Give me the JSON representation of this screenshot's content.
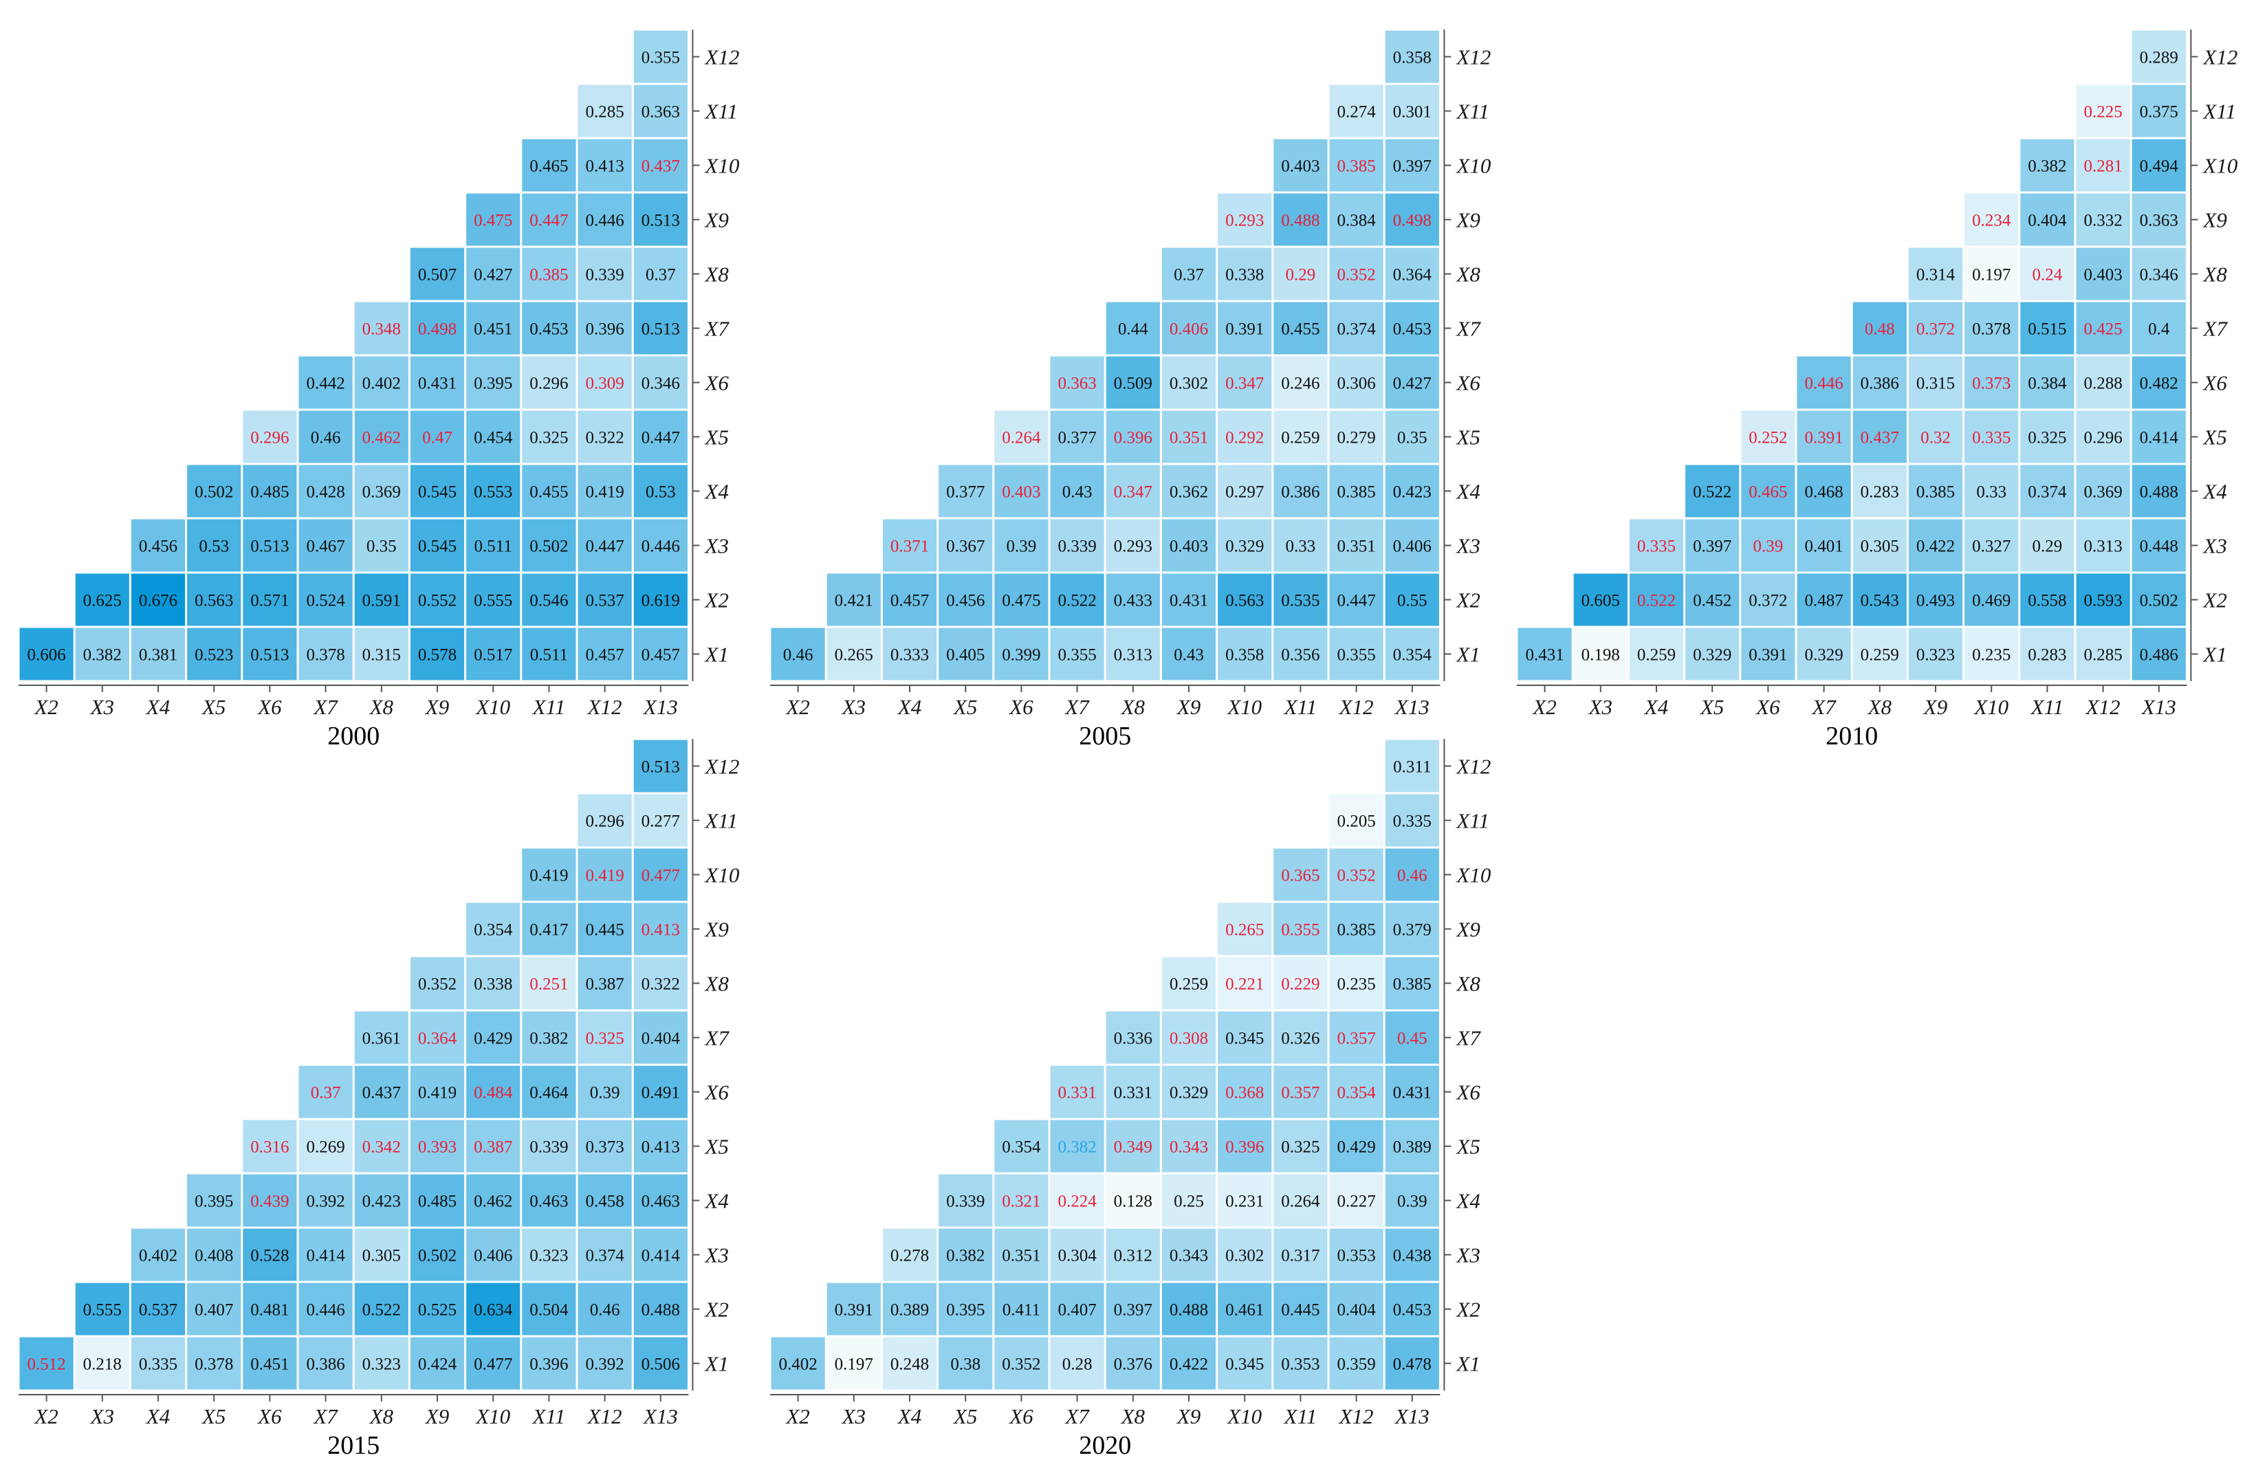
{
  "chart_data": [
    {
      "type": "heatmap",
      "title": "2000",
      "x_labels": [
        "X2",
        "X3",
        "X4",
        "X5",
        "X6",
        "X7",
        "X8",
        "X9",
        "X10",
        "X11",
        "X12",
        "X13"
      ],
      "y_labels": [
        "X1",
        "X2",
        "X3",
        "X4",
        "X5",
        "X6",
        "X7",
        "X8",
        "X9",
        "X10",
        "X11",
        "X12"
      ],
      "rows": [
        {
          "label": "X12",
          "values": [
            0.355
          ]
        },
        {
          "label": "X11",
          "values": [
            0.285,
            0.363
          ]
        },
        {
          "label": "X10",
          "values": [
            0.465,
            0.413,
            0.437
          ]
        },
        {
          "label": "X9",
          "values": [
            0.475,
            0.447,
            0.446,
            0.513
          ]
        },
        {
          "label": "X8",
          "values": [
            0.507,
            0.427,
            0.385,
            0.339,
            0.37
          ]
        },
        {
          "label": "X7",
          "values": [
            0.348,
            0.498,
            0.451,
            0.453,
            0.396,
            0.513
          ]
        },
        {
          "label": "X6",
          "values": [
            0.442,
            0.402,
            0.431,
            0.395,
            0.296,
            0.309,
            0.346
          ]
        },
        {
          "label": "X5",
          "values": [
            0.296,
            0.46,
            0.462,
            0.47,
            0.454,
            0.325,
            0.322,
            0.447
          ]
        },
        {
          "label": "X4",
          "values": [
            0.502,
            0.485,
            0.428,
            0.369,
            0.545,
            0.553,
            0.455,
            0.419,
            0.53
          ]
        },
        {
          "label": "X3",
          "values": [
            0.456,
            0.53,
            0.513,
            0.467,
            0.35,
            0.545,
            0.511,
            0.502,
            0.447,
            0.446
          ]
        },
        {
          "label": "X2",
          "values": [
            0.625,
            0.676,
            0.563,
            0.571,
            0.524,
            0.591,
            0.552,
            0.555,
            0.546,
            0.537,
            0.619
          ]
        },
        {
          "label": "X1",
          "values": [
            0.606,
            0.382,
            0.381,
            0.523,
            0.513,
            0.378,
            0.315,
            0.578,
            0.517,
            0.511,
            0.457,
            0.457
          ]
        }
      ],
      "red_values": [
        [],
        [],
        [],
        [],
        [
          0,
          2,
          3
        ],
        [
          5
        ],
        [
          0,
          1
        ],
        [
          2
        ],
        [
          0,
          1,
          8
        ],
        [
          2
        ],
        [],
        [
          3,
          4,
          9,
          10
        ]
      ],
      "cyan_values": [
        [],
        [],
        [],
        [],
        [],
        [],
        [],
        [],
        [],
        [],
        [],
        []
      ]
    },
    {
      "type": "heatmap",
      "title": "2005",
      "x_labels": [
        "X2",
        "X3",
        "X4",
        "X5",
        "X6",
        "X7",
        "X8",
        "X9",
        "X10",
        "X11",
        "X12",
        "X13"
      ],
      "y_labels": [
        "X1",
        "X2",
        "X3",
        "X4",
        "X5",
        "X6",
        "X7",
        "X8",
        "X9",
        "X10",
        "X11",
        "X12"
      ],
      "rows": [
        {
          "label": "X12",
          "values": [
            0.358
          ]
        },
        {
          "label": "X11",
          "values": [
            0.274,
            0.301
          ]
        },
        {
          "label": "X10",
          "values": [
            0.403,
            0.385,
            0.397
          ]
        },
        {
          "label": "X9",
          "values": [
            0.293,
            0.488,
            0.384,
            0.498
          ]
        },
        {
          "label": "X8",
          "values": [
            0.37,
            0.338,
            0.29,
            0.352,
            0.364
          ]
        },
        {
          "label": "X7",
          "values": [
            0.44,
            0.406,
            0.391,
            0.455,
            0.374,
            0.453
          ]
        },
        {
          "label": "X6",
          "values": [
            0.363,
            0.509,
            0.302,
            0.347,
            0.246,
            0.306,
            0.427
          ]
        },
        {
          "label": "X5",
          "values": [
            0.264,
            0.377,
            0.396,
            0.351,
            0.292,
            0.259,
            0.279,
            0.35
          ]
        },
        {
          "label": "X4",
          "values": [
            0.377,
            0.403,
            0.43,
            0.347,
            0.362,
            0.297,
            0.386,
            0.385,
            0.423
          ]
        },
        {
          "label": "X3",
          "values": [
            0.371,
            0.367,
            0.39,
            0.339,
            0.293,
            0.403,
            0.329,
            0.33,
            0.351,
            0.406
          ]
        },
        {
          "label": "X2",
          "values": [
            0.421,
            0.457,
            0.456,
            0.475,
            0.522,
            0.433,
            0.431,
            0.563,
            0.535,
            0.447,
            0.55
          ]
        },
        {
          "label": "X1",
          "values": [
            0.46,
            0.265,
            0.333,
            0.405,
            0.399,
            0.355,
            0.313,
            0.43,
            0.358,
            0.356,
            0.355,
            0.354
          ]
        }
      ],
      "red_values": [
        [],
        [],
        [
          0
        ],
        [
          1,
          3
        ],
        [
          0,
          2,
          3,
          4
        ],
        [
          0,
          3
        ],
        [
          1,
          6
        ],
        [
          2,
          3,
          5,
          7
        ],
        [
          0,
          1,
          3,
          6,
          8
        ],
        [
          1,
          9
        ],
        [
          9
        ],
        [
          3,
          7,
          9
        ]
      ],
      "cyan_values": [
        [],
        [],
        [],
        [],
        [],
        [],
        [],
        [],
        [],
        [],
        [],
        []
      ]
    },
    {
      "type": "heatmap",
      "title": "2010",
      "x_labels": [
        "X2",
        "X3",
        "X4",
        "X5",
        "X6",
        "X7",
        "X8",
        "X9",
        "X10",
        "X11",
        "X12",
        "X13"
      ],
      "y_labels": [
        "X1",
        "X2",
        "X3",
        "X4",
        "X5",
        "X6",
        "X7",
        "X8",
        "X9",
        "X10",
        "X11",
        "X12"
      ],
      "rows": [
        {
          "label": "X12",
          "values": [
            0.289
          ]
        },
        {
          "label": "X11",
          "values": [
            0.225,
            0.375
          ]
        },
        {
          "label": "X10",
          "values": [
            0.382,
            0.281,
            0.494
          ]
        },
        {
          "label": "X9",
          "values": [
            0.234,
            0.404,
            0.332,
            0.363
          ]
        },
        {
          "label": "X8",
          "values": [
            0.314,
            0.197,
            0.24,
            0.403,
            0.346
          ]
        },
        {
          "label": "X7",
          "values": [
            0.48,
            0.372,
            0.378,
            0.515,
            0.425,
            0.4
          ]
        },
        {
          "label": "X6",
          "values": [
            0.446,
            0.386,
            0.315,
            0.373,
            0.384,
            0.288,
            0.482
          ]
        },
        {
          "label": "X5",
          "values": [
            0.252,
            0.391,
            0.437,
            0.32,
            0.335,
            0.325,
            0.296,
            0.414
          ]
        },
        {
          "label": "X4",
          "values": [
            0.522,
            0.465,
            0.468,
            0.283,
            0.385,
            0.33,
            0.374,
            0.369,
            0.488
          ]
        },
        {
          "label": "X3",
          "values": [
            0.335,
            0.397,
            0.39,
            0.401,
            0.305,
            0.422,
            0.327,
            0.29,
            0.313,
            0.448
          ]
        },
        {
          "label": "X2",
          "values": [
            0.605,
            0.522,
            0.452,
            0.372,
            0.487,
            0.543,
            0.493,
            0.469,
            0.558,
            0.593,
            0.502
          ]
        },
        {
          "label": "X1",
          "values": [
            0.431,
            0.198,
            0.259,
            0.329,
            0.391,
            0.329,
            0.259,
            0.323,
            0.235,
            0.283,
            0.285,
            0.486
          ]
        }
      ],
      "red_values": [
        [],
        [
          1
        ],
        [
          0,
          2
        ],
        [
          1
        ],
        [
          0,
          1,
          2,
          3,
          4
        ],
        [
          0,
          3
        ],
        [
          0,
          1,
          4,
          6
        ],
        [
          2,
          5,
          7
        ],
        [
          0,
          8
        ],
        [
          1,
          4,
          5,
          9
        ],
        [
          0,
          5,
          8,
          9
        ],
        [
          3,
          4,
          6,
          7,
          9,
          11
        ]
      ],
      "cyan_values": [
        [],
        [],
        [],
        [],
        [],
        [],
        [],
        [],
        [],
        [],
        [],
        [
          2
        ]
      ]
    },
    {
      "type": "heatmap",
      "title": "2015",
      "x_labels": [
        "X2",
        "X3",
        "X4",
        "X5",
        "X6",
        "X7",
        "X8",
        "X9",
        "X10",
        "X11",
        "X12",
        "X13"
      ],
      "y_labels": [
        "X1",
        "X2",
        "X3",
        "X4",
        "X5",
        "X6",
        "X7",
        "X8",
        "X9",
        "X10",
        "X11",
        "X12"
      ],
      "rows": [
        {
          "label": "X12",
          "values": [
            0.513
          ]
        },
        {
          "label": "X11",
          "values": [
            0.296,
            0.277
          ]
        },
        {
          "label": "X10",
          "values": [
            0.419,
            0.419,
            0.477
          ]
        },
        {
          "label": "X9",
          "values": [
            0.354,
            0.417,
            0.445,
            0.413
          ]
        },
        {
          "label": "X8",
          "values": [
            0.352,
            0.338,
            0.251,
            0.387,
            0.322
          ]
        },
        {
          "label": "X7",
          "values": [
            0.361,
            0.364,
            0.429,
            0.382,
            0.325,
            0.404
          ]
        },
        {
          "label": "X6",
          "values": [
            0.37,
            0.437,
            0.419,
            0.484,
            0.464,
            0.39,
            0.491
          ]
        },
        {
          "label": "X5",
          "values": [
            0.316,
            0.269,
            0.342,
            0.393,
            0.387,
            0.339,
            0.373,
            0.413
          ]
        },
        {
          "label": "X4",
          "values": [
            0.395,
            0.439,
            0.392,
            0.423,
            0.485,
            0.462,
            0.463,
            0.458,
            0.463
          ]
        },
        {
          "label": "X3",
          "values": [
            0.402,
            0.408,
            0.528,
            0.414,
            0.305,
            0.502,
            0.406,
            0.323,
            0.374,
            0.414
          ]
        },
        {
          "label": "X2",
          "values": [
            0.555,
            0.537,
            0.407,
            0.481,
            0.446,
            0.522,
            0.525,
            0.634,
            0.504,
            0.46,
            0.488
          ]
        },
        {
          "label": "X1",
          "values": [
            0.512,
            0.218,
            0.335,
            0.378,
            0.451,
            0.386,
            0.323,
            0.424,
            0.477,
            0.396,
            0.392,
            0.506
          ]
        }
      ],
      "red_values": [
        [
          0
        ],
        [],
        [],
        [
          1
        ],
        [
          0,
          2,
          3,
          4
        ],
        [
          0,
          3
        ],
        [
          1,
          4
        ],
        [
          2
        ],
        [
          3,
          4,
          6,
          7,
          8
        ],
        [
          1,
          2,
          3,
          4,
          5,
          9
        ],
        [
          5
        ],
        [
          3,
          4,
          5,
          6,
          7,
          8,
          9,
          10,
          11
        ]
      ],
      "cyan_values": [
        [],
        [],
        [],
        [],
        [],
        [],
        [],
        [],
        [],
        [],
        [
          2
        ],
        []
      ]
    },
    {
      "type": "heatmap",
      "title": "2020",
      "x_labels": [
        "X2",
        "X3",
        "X4",
        "X5",
        "X6",
        "X7",
        "X8",
        "X9",
        "X10",
        "X11",
        "X12",
        "X13"
      ],
      "y_labels": [
        "X1",
        "X2",
        "X3",
        "X4",
        "X5",
        "X6",
        "X7",
        "X8",
        "X9",
        "X10",
        "X11",
        "X12"
      ],
      "rows": [
        {
          "label": "X12",
          "values": [
            0.311
          ]
        },
        {
          "label": "X11",
          "values": [
            0.205,
            0.335
          ]
        },
        {
          "label": "X10",
          "values": [
            0.365,
            0.352,
            0.46
          ]
        },
        {
          "label": "X9",
          "values": [
            0.265,
            0.355,
            0.385,
            0.379
          ]
        },
        {
          "label": "X8",
          "values": [
            0.259,
            0.221,
            0.229,
            0.235,
            0.385
          ]
        },
        {
          "label": "X7",
          "values": [
            0.336,
            0.308,
            0.345,
            0.326,
            0.357,
            0.45
          ]
        },
        {
          "label": "X6",
          "values": [
            0.331,
            0.331,
            0.329,
            0.368,
            0.357,
            0.354,
            0.431
          ]
        },
        {
          "label": "X5",
          "values": [
            0.354,
            0.382,
            0.349,
            0.343,
            0.396,
            0.325,
            0.429,
            0.389
          ]
        },
        {
          "label": "X4",
          "values": [
            0.339,
            0.321,
            0.224,
            0.128,
            0.25,
            0.231,
            0.264,
            0.227,
            0.39
          ]
        },
        {
          "label": "X3",
          "values": [
            0.278,
            0.382,
            0.351,
            0.304,
            0.312,
            0.343,
            0.302,
            0.317,
            0.353,
            0.438
          ]
        },
        {
          "label": "X2",
          "values": [
            0.391,
            0.389,
            0.395,
            0.411,
            0.407,
            0.397,
            0.488,
            0.461,
            0.445,
            0.404,
            0.453
          ]
        },
        {
          "label": "X1",
          "values": [
            0.402,
            0.197,
            0.248,
            0.38,
            0.352,
            0.28,
            0.376,
            0.422,
            0.345,
            0.353,
            0.359,
            0.478
          ]
        }
      ],
      "red_values": [
        [],
        [],
        [],
        [
          1,
          2
        ],
        [
          2,
          3,
          4
        ],
        [
          0,
          3,
          4,
          5
        ],
        [
          1,
          4,
          5
        ],
        [
          1,
          2,
          6
        ],
        [
          0,
          1,
          6,
          7,
          8
        ],
        [
          0,
          1,
          2,
          4,
          5,
          7,
          8,
          9
        ],
        [],
        [
          2,
          6,
          7,
          9,
          10,
          11
        ]
      ],
      "cyan_values": [
        [],
        [],
        [],
        [],
        [
          1
        ],
        [],
        [],
        [],
        [
          5
        ],
        [],
        [],
        []
      ]
    }
  ],
  "colors": {
    "value_text_default": "#111111",
    "value_text_red": "#e8203a",
    "value_text_cyan": "#2aa7e6",
    "scale_low": "#f3fafc",
    "scale_high": "#0596d8"
  }
}
